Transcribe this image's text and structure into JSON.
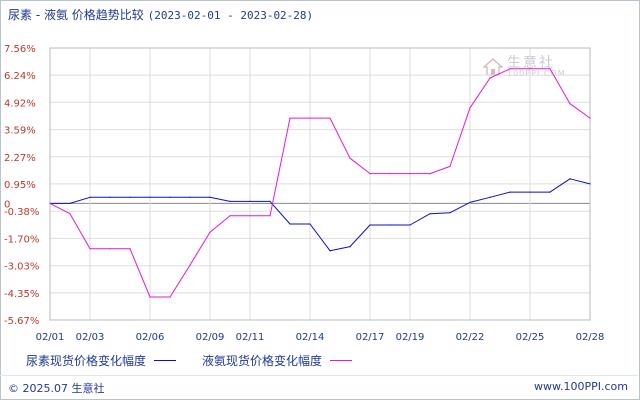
{
  "header": {
    "title": "尿素 - 液氨 价格趋势比较",
    "date_range": "(2023-02-01 - 2023-02-28)"
  },
  "legend": {
    "series_1": "尿素现货价格变化幅度",
    "series_2": "液氨现货价格变化幅度"
  },
  "watermark": {
    "name": "生意社",
    "site": "100PPI.COM"
  },
  "footer": {
    "copyright": "© 2025.07 生意社",
    "site": "www.100PPI.com"
  },
  "colors": {
    "series_1": "#0a10c8",
    "series_2": "#e619d6",
    "grid": "#dddddd",
    "zero_line": "#888888",
    "text": "#1f3a93"
  },
  "chart_data": {
    "type": "line",
    "title": "尿素 - 液氨 价格趋势比较",
    "xlabel": "",
    "ylabel": "",
    "ylim": [
      -5.67,
      7.56
    ],
    "ytick_labels": [
      "7.56%",
      "6.24%",
      "4.92%",
      "3.59%",
      "2.27%",
      "0.95%",
      "0",
      "-0.38%",
      "-1.70%",
      "-3.03%",
      "-4.35%",
      "-5.67%"
    ],
    "ytick_values": [
      7.56,
      6.24,
      4.92,
      3.59,
      2.27,
      0.95,
      0,
      -0.38,
      -1.7,
      -3.03,
      -4.35,
      -5.67
    ],
    "xtick_labels": [
      "02/01",
      "02/03",
      "02/06",
      "02/09",
      "02/11",
      "02/14",
      "02/17",
      "02/19",
      "02/22",
      "02/25",
      "02/28"
    ],
    "xtick_days": [
      1,
      3,
      6,
      9,
      11,
      14,
      17,
      19,
      22,
      25,
      28
    ],
    "x_days": [
      1,
      2,
      3,
      4,
      5,
      6,
      7,
      8,
      9,
      10,
      11,
      12,
      13,
      14,
      15,
      16,
      17,
      18,
      19,
      20,
      21,
      22,
      23,
      24,
      25,
      26,
      27,
      28
    ],
    "grid": true,
    "legend_position": "bottom",
    "series": [
      {
        "name": "尿素现货价格变化幅度",
        "values": [
          0,
          0,
          0.3,
          0.3,
          0.3,
          0.3,
          0.3,
          0.3,
          0.3,
          0.1,
          0.1,
          0.1,
          -1.0,
          -1.0,
          -2.3,
          -2.1,
          -1.05,
          -1.05,
          -1.05,
          -0.5,
          -0.45,
          0.05,
          0.3,
          0.55,
          0.55,
          0.55,
          1.2,
          0.95
        ]
      },
      {
        "name": "液氨现货价格变化幅度",
        "values": [
          0,
          -0.5,
          -2.2,
          -2.2,
          -2.2,
          -4.55,
          -4.55,
          -3.0,
          -1.4,
          -0.6,
          -0.6,
          -0.6,
          4.15,
          4.15,
          4.15,
          2.2,
          1.45,
          1.45,
          1.45,
          1.45,
          1.8,
          4.65,
          6.1,
          6.55,
          6.55,
          6.55,
          4.85,
          4.15
        ]
      }
    ]
  }
}
